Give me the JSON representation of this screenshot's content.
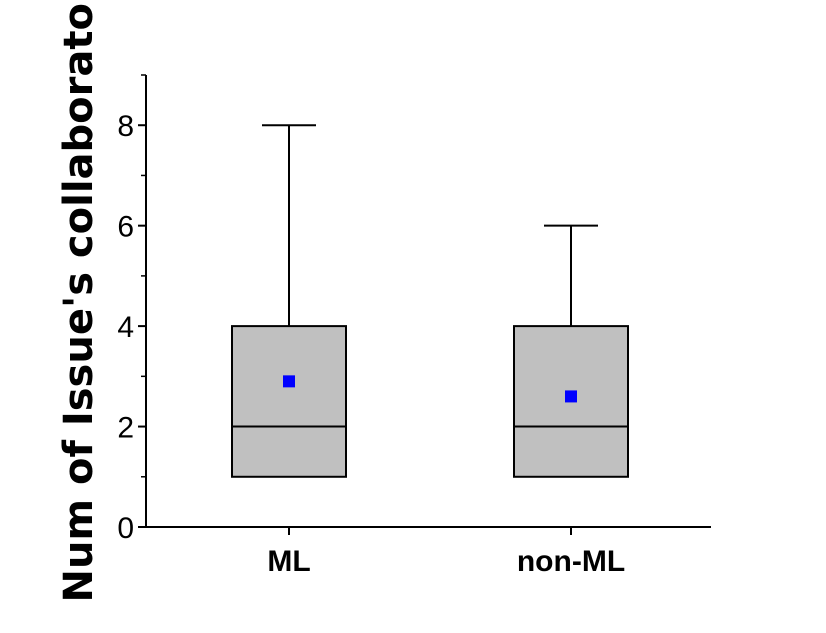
{
  "chart_data": {
    "type": "box",
    "title": "",
    "xlabel": "",
    "ylabel": "Num of Issue's collaborators",
    "ylim": [
      0,
      9
    ],
    "y_ticks": [
      0,
      2,
      4,
      6,
      8
    ],
    "categories": [
      "ML",
      "non-ML"
    ],
    "boxes": [
      {
        "category": "ML",
        "whisker_low": 1,
        "q1": 1,
        "median": 2,
        "q3": 4,
        "whisker_high": 8,
        "mean": 2.9
      },
      {
        "category": "non-ML",
        "whisker_low": 1,
        "q1": 1,
        "median": 2,
        "q3": 4,
        "whisker_high": 6,
        "mean": 2.6
      }
    ],
    "grid": false,
    "colors": {
      "box_fill": "#c0c0c0",
      "box_stroke": "#000000",
      "mean_marker": "#0000ff",
      "axis": "#000000"
    }
  }
}
